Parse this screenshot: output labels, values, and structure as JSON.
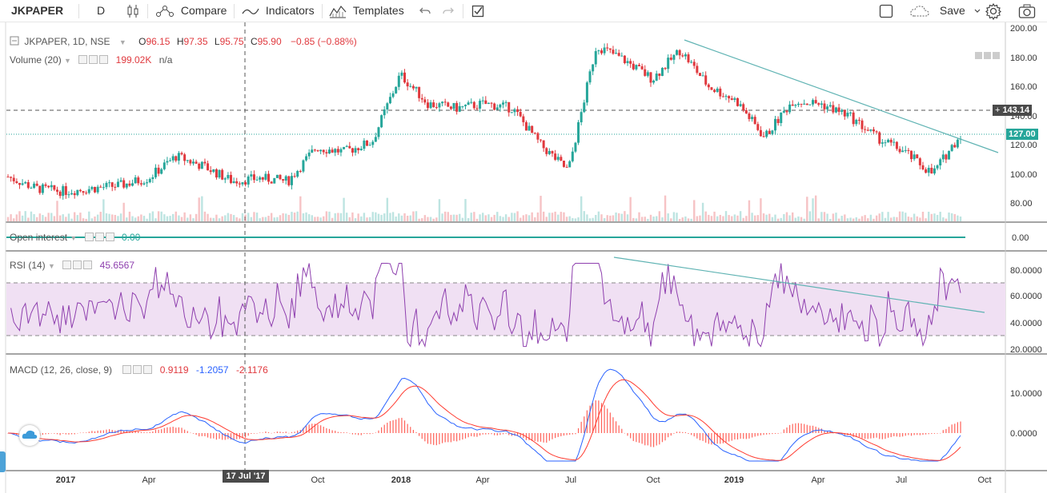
{
  "toolbar": {
    "symbol": "JKPAPER",
    "interval": "D",
    "compare": "Compare",
    "indicators": "Indicators",
    "templates": "Templates",
    "save": "Save"
  },
  "legend": {
    "main_title": "JKPAPER, 1D, NSE",
    "o_label": "O",
    "o_val": "96.15",
    "h_label": "H",
    "h_val": "97.35",
    "l_label": "L",
    "l_val": "95.75",
    "c_label": "C",
    "c_val": "95.90",
    "change": "−0.85 (−0.88%)",
    "volume_title": "Volume (20)",
    "volume_val": "199.02K",
    "volume_na": "n/a",
    "oi_title": "Open interest",
    "oi_val": "0.00",
    "rsi_title": "RSI (14)",
    "rsi_val": "45.6567",
    "macd_title": "MACD (12, 26, close, 9)",
    "macd_v1": "0.9119",
    "macd_v2": "-1.2057",
    "macd_v3": "-2.1176"
  },
  "price_scale": [
    "200.00",
    "180.00",
    "160.00",
    "140.00",
    "120.00",
    "100.00",
    "80.00"
  ],
  "price_tags": {
    "level": "143.14",
    "last": "127.00"
  },
  "oi_scale": [
    "0.00"
  ],
  "rsi_scale": [
    "80.0000",
    "60.0000",
    "40.0000",
    "20.0000"
  ],
  "macd_scale": [
    "10.0000",
    "0.0000"
  ],
  "time_axis": [
    "2017",
    "Apr",
    "Jul",
    "Oct",
    "2018",
    "Apr",
    "Jul",
    "Oct",
    "2019",
    "Apr",
    "Jul",
    "Oct"
  ],
  "crosshair_date": "17 Jul '17",
  "colors": {
    "up": "#26a69a",
    "down": "#e0393e",
    "rsi": "#8e3fae",
    "rsi_band": "#f0e0f3",
    "macd": "#2962ff",
    "signal": "#ff3b30",
    "trendline": "#5fb3b3"
  },
  "chart_data": {
    "type": "candlestick",
    "price_points": [
      [
        "2016-11",
        98
      ],
      [
        "2016-12",
        90
      ],
      [
        "2017-01",
        88
      ],
      [
        "2017-02",
        90
      ],
      [
        "2017-03",
        92
      ],
      [
        "2017-04",
        97
      ],
      [
        "2017-05",
        112
      ],
      [
        "2017-06",
        105
      ],
      [
        "2017-07",
        95
      ],
      [
        "2017-08",
        97
      ],
      [
        "2017-09",
        95
      ],
      [
        "2017-10",
        118
      ],
      [
        "2017-11",
        115
      ],
      [
        "2017-12",
        122
      ],
      [
        "2018-01",
        168
      ],
      [
        "2018-02",
        148
      ],
      [
        "2018-03",
        145
      ],
      [
        "2018-04",
        148
      ],
      [
        "2018-05",
        145
      ],
      [
        "2018-06",
        120
      ],
      [
        "2018-07",
        102
      ],
      [
        "2018-08",
        188
      ],
      [
        "2018-09",
        178
      ],
      [
        "2018-10",
        165
      ],
      [
        "2018-11",
        185
      ],
      [
        "2018-12",
        160
      ],
      [
        "2019-01",
        150
      ],
      [
        "2019-02",
        125
      ],
      [
        "2019-03",
        150
      ],
      [
        "2019-04",
        148
      ],
      [
        "2019-05",
        140
      ],
      [
        "2019-06",
        125
      ],
      [
        "2019-07",
        115
      ],
      [
        "2019-08",
        100
      ],
      [
        "2019-09",
        127
      ]
    ],
    "ylim": [
      70,
      200
    ],
    "rsi_levels": [
      30,
      70
    ],
    "rsi_range": [
      15,
      90
    ],
    "macd_range": [
      -7,
      18
    ]
  }
}
